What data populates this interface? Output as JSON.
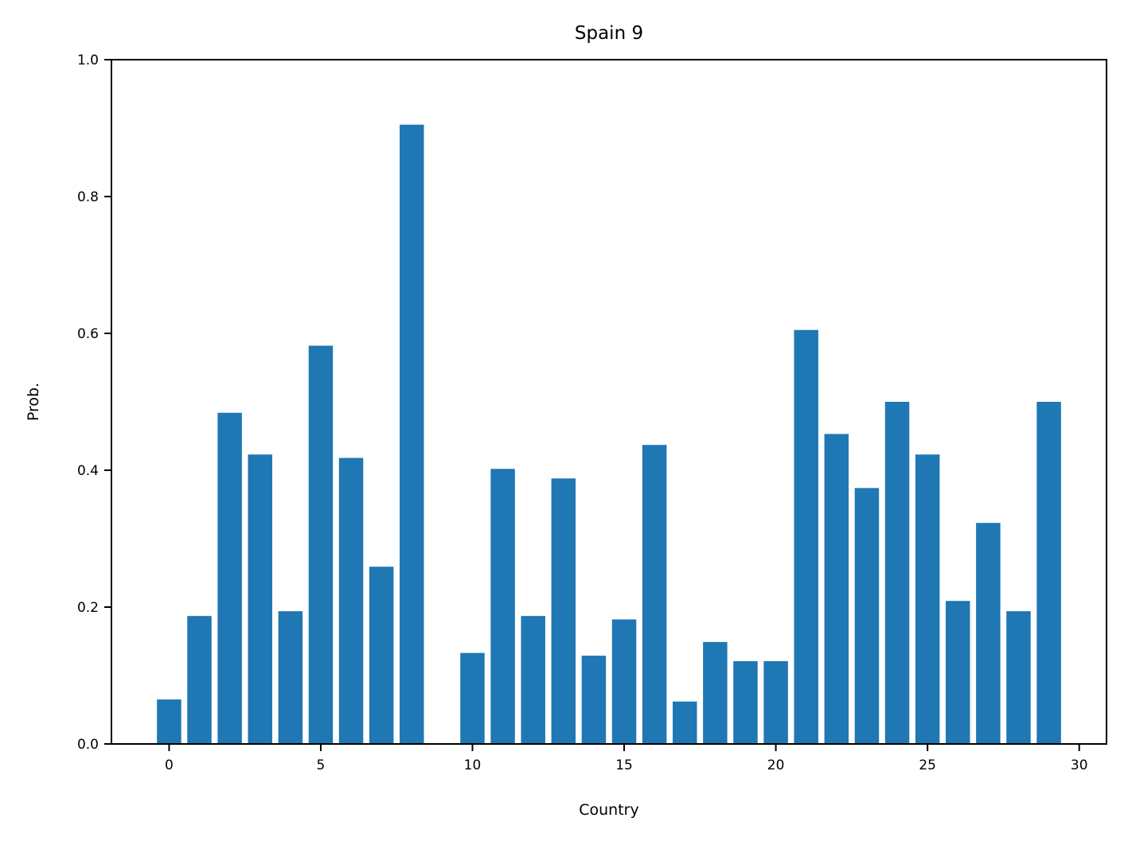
{
  "chart_data": {
    "type": "bar",
    "title": "Spain 9",
    "xlabel": "Country",
    "ylabel": "Prob.",
    "x": [
      0,
      1,
      2,
      3,
      4,
      5,
      6,
      7,
      8,
      9,
      10,
      11,
      12,
      13,
      14,
      15,
      16,
      17,
      18,
      19,
      20,
      21,
      22,
      23,
      24,
      25,
      26,
      27,
      28,
      29
    ],
    "values": [
      0.065,
      0.187,
      0.484,
      0.423,
      0.194,
      0.582,
      0.418,
      0.259,
      0.905,
      0.0,
      0.133,
      0.402,
      0.187,
      0.388,
      0.129,
      0.182,
      0.437,
      0.062,
      0.149,
      0.121,
      0.121,
      0.605,
      0.453,
      0.374,
      0.5,
      0.423,
      0.209,
      0.323,
      0.194,
      0.5
    ],
    "xlim": [
      -1.9,
      30.9
    ],
    "ylim": [
      0,
      1.0
    ],
    "xticks": [
      0,
      5,
      10,
      15,
      20,
      25,
      30
    ],
    "yticks": [
      0.0,
      0.2,
      0.4,
      0.6,
      0.8,
      1.0
    ],
    "grid": false,
    "bar_color": "#1f77b4"
  }
}
